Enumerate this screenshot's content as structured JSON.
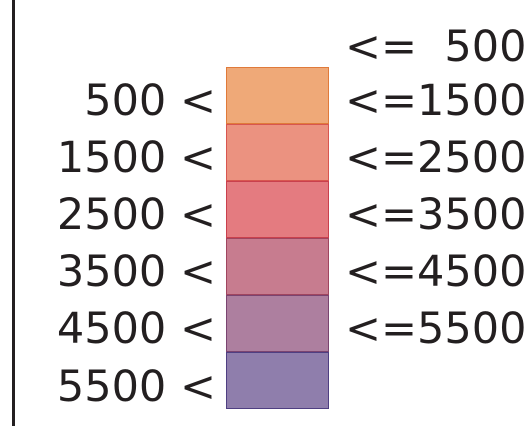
{
  "legend": {
    "top_label": "<=  500",
    "rows": [
      {
        "lower": "500 <",
        "upper": "<=1500",
        "fill": "#efa978",
        "stroke": "#e07a3a"
      },
      {
        "lower": "1500 <",
        "upper": "<=2500",
        "fill": "#eb9280",
        "stroke": "#d8564f"
      },
      {
        "lower": "2500 <",
        "upper": "<=3500",
        "fill": "#e47b80",
        "stroke": "#c9404d"
      },
      {
        "lower": "3500 <",
        "upper": "<=4500",
        "fill": "#c77c8f",
        "stroke": "#a0455f"
      },
      {
        "lower": "4500 <",
        "upper": "<=5500",
        "fill": "#ad7f9f",
        "stroke": "#7a4470"
      },
      {
        "lower": "5500 <",
        "upper": "",
        "fill": "#8f7eac",
        "stroke": "#4f3f82"
      }
    ]
  }
}
